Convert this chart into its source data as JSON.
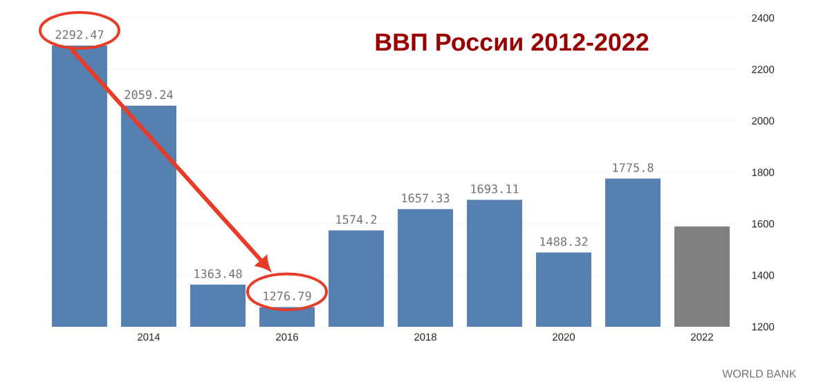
{
  "chart_data": {
    "type": "bar",
    "title": "ВВП России 2012-2022",
    "categories": [
      null,
      "2014",
      null,
      "2016",
      null,
      "2018",
      null,
      "2020",
      null,
      "2022"
    ],
    "values": [
      2292.47,
      2059.24,
      1363.48,
      1276.79,
      1574.2,
      1657.33,
      1693.11,
      1488.32,
      1775.8,
      1590
    ],
    "colors": [
      "#5580b0",
      "#5580b0",
      "#5580b0",
      "#5580b0",
      "#5580b0",
      "#5580b0",
      "#5580b0",
      "#5580b0",
      "#5580b0",
      "#808080"
    ],
    "value_labels": [
      "2292.47",
      "2059.24",
      "1363.48",
      "1276.79",
      "1574.2",
      "1657.33",
      "1693.11",
      "1488.32",
      "1775.8",
      null
    ],
    "ylim": [
      1200,
      2400
    ],
    "yticks": [
      1200,
      1400,
      1600,
      1800,
      2000,
      2200,
      2400
    ],
    "grid": "y",
    "annotations": [
      "WORLD BANK"
    ]
  }
}
